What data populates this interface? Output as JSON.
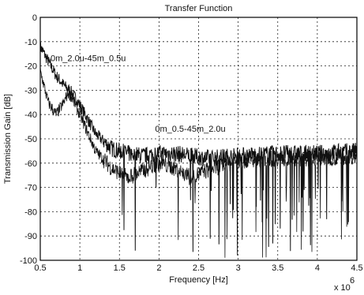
{
  "chart_data": {
    "type": "line",
    "title": "Transfer Function",
    "xlabel": "Frequency [Hz]",
    "ylabel": "Transmission Gain [dB]",
    "x_multiplier_label": "x 10",
    "x_multiplier_exponent": "6",
    "xlim": [
      0.5,
      4.5
    ],
    "ylim": [
      -100,
      0
    ],
    "xticks": [
      0.5,
      1,
      1.5,
      2,
      2.5,
      3,
      3.5,
      4,
      4.5
    ],
    "xtick_labels": [
      "0.5",
      "1",
      "1.5",
      "2",
      "2.5",
      "3",
      "3.5",
      "4",
      "4.5"
    ],
    "yticks": [
      0,
      -10,
      -20,
      -30,
      -40,
      -50,
      -60,
      -70,
      -80,
      -90,
      -100
    ],
    "ytick_labels": [
      "0",
      "-10",
      "-20",
      "-30",
      "-40",
      "-50",
      "-60",
      "-70",
      "-80",
      "-90",
      "-100"
    ],
    "grid": true,
    "line_color": "#111111",
    "series": [
      {
        "name": "0m_2.0u-45m_0.5u",
        "x": [
          0.5,
          0.6,
          0.7,
          0.8,
          0.9,
          1.0,
          1.1,
          1.2,
          1.4,
          1.6,
          1.8,
          2.0,
          2.2,
          2.4,
          2.6,
          3.0,
          3.5,
          4.0,
          4.5
        ],
        "y": [
          -12,
          -18,
          -24,
          -28,
          -31,
          -36,
          -42,
          -48,
          -54,
          -56,
          -57,
          -56,
          -56,
          -57,
          -58,
          -57,
          -56,
          -56,
          -55
        ]
      },
      {
        "name": "0m_0.5-45m_2.0u",
        "x": [
          0.5,
          0.6,
          0.7,
          0.8,
          0.85,
          0.9,
          1.0,
          1.2,
          1.4,
          1.6,
          1.8,
          2.0,
          2.2,
          2.4,
          2.6,
          3.0,
          3.5,
          4.0,
          4.5
        ],
        "y": [
          -22,
          -35,
          -40,
          -35,
          -31,
          -33,
          -40,
          -55,
          -62,
          -66,
          -63,
          -60,
          -62,
          -66,
          -63,
          -59,
          -58,
          -58,
          -57
        ]
      }
    ],
    "annotations": [
      {
        "text": "0m_2.0u-45m_0.5u",
        "x": 0.63,
        "y": -18
      },
      {
        "text": "0m_0.5-45m_2.0u",
        "x": 1.95,
        "y": -47
      }
    ]
  }
}
